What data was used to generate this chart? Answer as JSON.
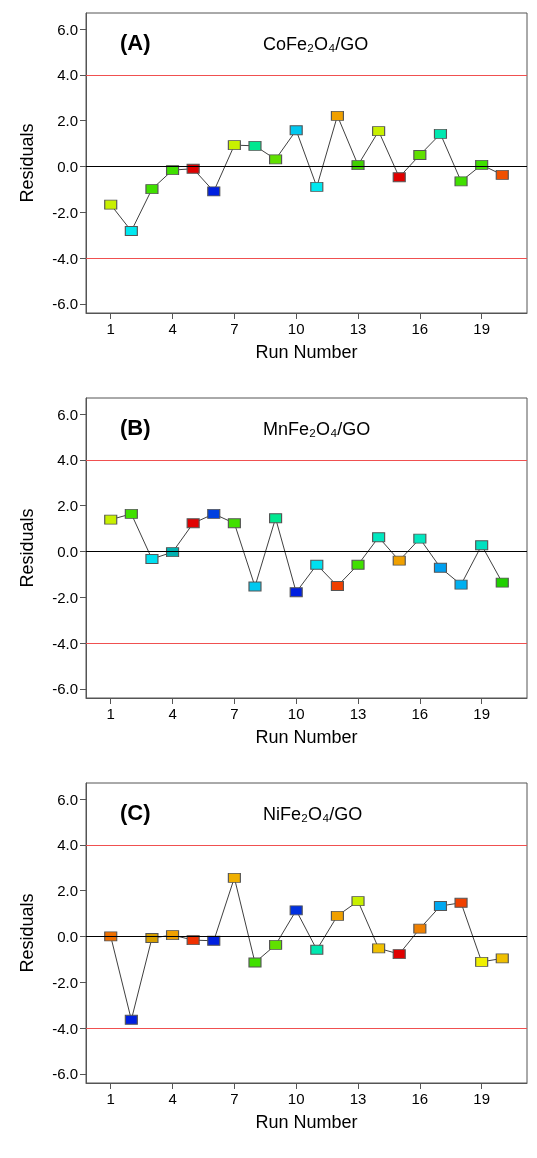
{
  "chart_data": [
    {
      "type": "line",
      "title": "(A)",
      "subtitle": "CoFe₂O₄/GO",
      "xlabel": "Run Number",
      "ylabel": "Residuals",
      "marker": "square",
      "x": [
        1,
        2,
        3,
        4,
        5,
        6,
        7,
        8,
        9,
        10,
        11,
        12,
        13,
        14,
        15,
        16,
        17,
        18,
        19,
        20
      ],
      "xlim": [
        -0.2,
        21.2
      ],
      "xticks": [
        1,
        4,
        7,
        10,
        13,
        16,
        19
      ],
      "ylim": [
        -6.4,
        6.7
      ],
      "yticks": [
        {
          "value": -6,
          "label": "-6.0"
        },
        {
          "value": -4,
          "label": "-4.0"
        },
        {
          "value": -2,
          "label": "-2.0"
        },
        {
          "value": 0,
          "label": "0.0"
        },
        {
          "value": 2,
          "label": "2.0"
        },
        {
          "value": 4,
          "label": "4.0"
        },
        {
          "value": 6,
          "label": "6.0"
        }
      ],
      "ref_lines": [
        {
          "axis": "y",
          "value": 4,
          "color": "#f05050"
        },
        {
          "axis": "y",
          "value": -4,
          "color": "#f05050"
        },
        {
          "axis": "y",
          "value": 0,
          "color": "#000000"
        }
      ],
      "series": [
        {
          "color": "#404040",
          "values": [
            -1.67,
            -2.82,
            -0.99,
            -0.16,
            -0.1,
            -1.09,
            0.93,
            0.9,
            0.31,
            1.58,
            -0.89,
            2.21,
            0.06,
            1.54,
            -0.47,
            0.5,
            1.42,
            -0.65,
            0.07,
            -0.37
          ],
          "colors": [
            "#c8f000",
            "#00e8f0",
            "#40e000",
            "#40e000",
            "#e00000",
            "#0020e0",
            "#c8f000",
            "#00e890",
            "#60e000",
            "#00c8f0",
            "#00e8f0",
            "#f0a000",
            "#40d000",
            "#c8f000",
            "#e00000",
            "#60e000",
            "#00e8b0",
            "#40e000",
            "#40e000",
            "#f05000"
          ]
        }
      ]
    },
    {
      "type": "line",
      "title": "(B)",
      "subtitle": "MnFe₂O₄/GO",
      "xlabel": "Run Number",
      "ylabel": "Residuals",
      "marker": "square",
      "x": [
        1,
        2,
        3,
        4,
        5,
        6,
        7,
        8,
        9,
        10,
        11,
        12,
        13,
        14,
        15,
        16,
        17,
        18,
        19,
        20
      ],
      "xlim": [
        -0.2,
        21.2
      ],
      "xticks": [
        1,
        4,
        7,
        10,
        13,
        16,
        19
      ],
      "ylim": [
        -6.4,
        6.7
      ],
      "yticks": [
        {
          "value": -6,
          "label": "-6.0"
        },
        {
          "value": -4,
          "label": "-4.0"
        },
        {
          "value": -2,
          "label": "-2.0"
        },
        {
          "value": 0,
          "label": "0.0"
        },
        {
          "value": 2,
          "label": "2.0"
        },
        {
          "value": 4,
          "label": "4.0"
        },
        {
          "value": 6,
          "label": "6.0"
        }
      ],
      "ref_lines": [
        {
          "axis": "y",
          "value": 4,
          "color": "#f05050"
        },
        {
          "axis": "y",
          "value": -4,
          "color": "#f05050"
        },
        {
          "axis": "y",
          "value": 0,
          "color": "#000000"
        }
      ],
      "series": [
        {
          "color": "#404040",
          "values": [
            1.39,
            1.64,
            -0.33,
            -0.03,
            1.23,
            1.64,
            1.23,
            -1.53,
            1.45,
            -1.78,
            -0.58,
            -1.51,
            -0.58,
            0.62,
            -0.4,
            0.56,
            -0.71,
            -1.45,
            0.27,
            -1.36
          ],
          "colors": [
            "#c8f000",
            "#40e000",
            "#00e0f0",
            "#00b0b0",
            "#e00000",
            "#0040e0",
            "#40e000",
            "#00c8f0",
            "#00e890",
            "#0020e0",
            "#00e0f0",
            "#f04000",
            "#40e000",
            "#00e8c0",
            "#f0a000",
            "#00e8c0",
            "#00a0f0",
            "#00b0f0",
            "#00e0c0",
            "#20d000"
          ]
        }
      ]
    },
    {
      "type": "line",
      "title": "(C)",
      "subtitle": "NiFe₂O₄/GO",
      "xlabel": "Run Number",
      "ylabel": "Residuals",
      "marker": "square",
      "x": [
        1,
        2,
        3,
        4,
        5,
        6,
        7,
        8,
        9,
        10,
        11,
        12,
        13,
        14,
        15,
        16,
        17,
        18,
        19,
        20
      ],
      "xlim": [
        -0.2,
        21.2
      ],
      "xticks": [
        1,
        4,
        7,
        10,
        13,
        16,
        19
      ],
      "ylim": [
        -6.4,
        6.7
      ],
      "yticks": [
        {
          "value": -6,
          "label": "-6.0"
        },
        {
          "value": -4,
          "label": "-4.0"
        },
        {
          "value": -2,
          "label": "-2.0"
        },
        {
          "value": 0,
          "label": "0.0"
        },
        {
          "value": 2,
          "label": "2.0"
        },
        {
          "value": 4,
          "label": "4.0"
        },
        {
          "value": 6,
          "label": "6.0"
        }
      ],
      "ref_lines": [
        {
          "axis": "y",
          "value": 4,
          "color": "#f05050"
        },
        {
          "axis": "y",
          "value": -4,
          "color": "#f05050"
        },
        {
          "axis": "y",
          "value": 0,
          "color": "#000000"
        }
      ],
      "series": [
        {
          "color": "#404040",
          "values": [
            0.0,
            -3.64,
            -0.07,
            0.06,
            -0.16,
            -0.19,
            2.56,
            -1.14,
            -0.37,
            1.14,
            -0.58,
            0.9,
            1.54,
            -0.52,
            -0.77,
            0.34,
            1.33,
            1.47,
            -1.11,
            -0.96
          ],
          "colors": [
            "#f07000",
            "#0020e0",
            "#d8a000",
            "#f0a000",
            "#f03000",
            "#0020e0",
            "#f0b000",
            "#40e000",
            "#60e000",
            "#0030e0",
            "#00e8b0",
            "#f0a000",
            "#c8f000",
            "#f0c000",
            "#e00000",
            "#f08000",
            "#00a8f0",
            "#f04000",
            "#f0f000",
            "#f0c000"
          ]
        }
      ]
    }
  ]
}
